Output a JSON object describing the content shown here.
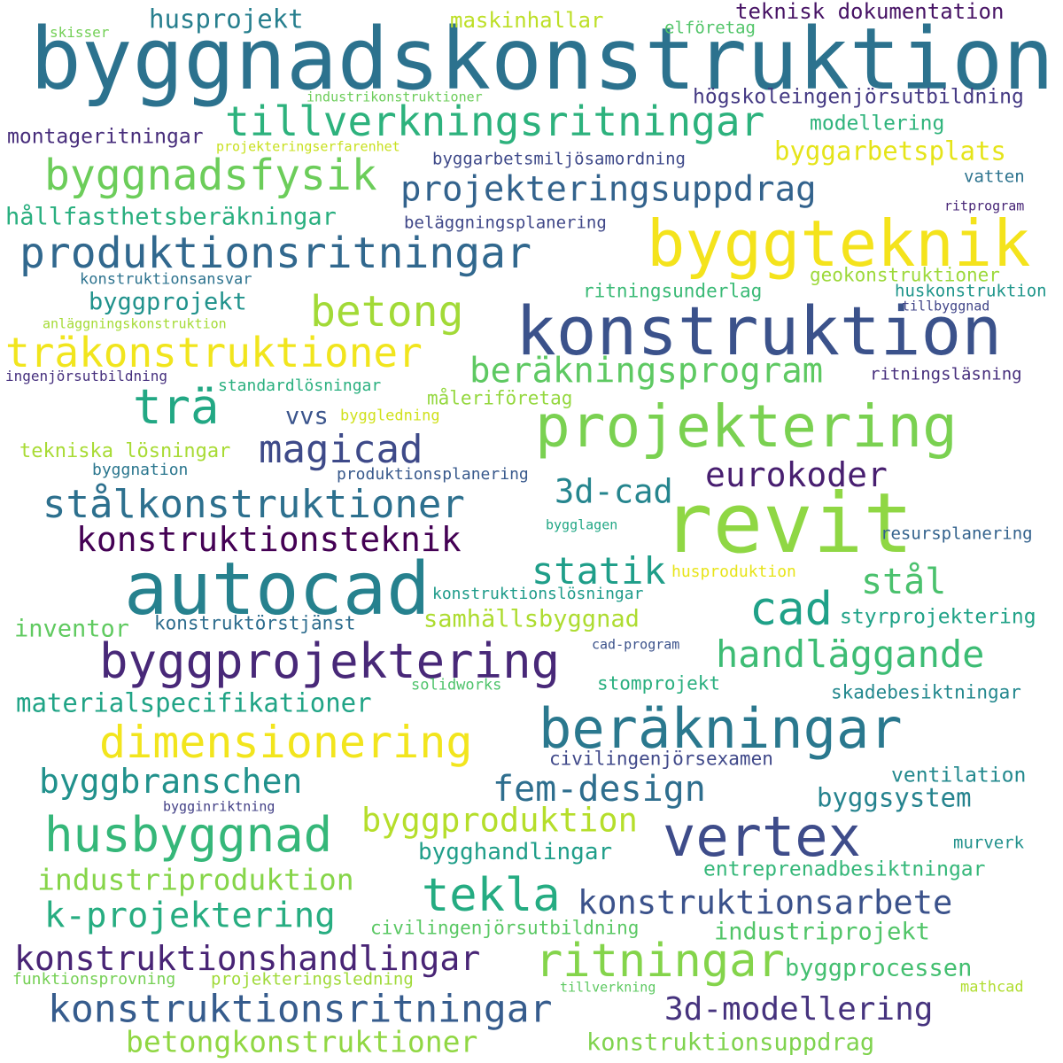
{
  "words": [
    {
      "text": "byggnadskonstruktion",
      "color": "#2c728e"
    },
    {
      "text": "byggteknik",
      "color": "#f4e31c"
    },
    {
      "text": "konstruktion",
      "color": "#3b528b"
    },
    {
      "text": "projektering",
      "color": "#7ad151"
    },
    {
      "text": "revit",
      "color": "#8fd744"
    },
    {
      "text": "autocad",
      "color": "#26818e"
    },
    {
      "text": "byggprojektering",
      "color": "#482878"
    },
    {
      "text": "beräkningar",
      "color": "#2a788e"
    },
    {
      "text": "tillverkningsritningar",
      "color": "#2db27d"
    },
    {
      "text": "byggnadsfysik",
      "color": "#6ccd5a"
    },
    {
      "text": "projekteringsuppdrag",
      "color": "#33638d"
    },
    {
      "text": "produktionsritningar",
      "color": "#31688e"
    },
    {
      "text": "betong",
      "color": "#a2da37"
    },
    {
      "text": "träkonstruktioner",
      "color": "#f1e51d"
    },
    {
      "text": "beräkningsprogram",
      "color": "#5ec962"
    },
    {
      "text": "trä",
      "color": "#22a884"
    },
    {
      "text": "magicad",
      "color": "#3e4a89"
    },
    {
      "text": "stålkonstruktioner",
      "color": "#2d708e"
    },
    {
      "text": "konstruktionsteknik",
      "color": "#440154"
    },
    {
      "text": "3d-cad",
      "color": "#25858e"
    },
    {
      "text": "eurokoder",
      "color": "#481f70"
    },
    {
      "text": "statik",
      "color": "#1f9e89"
    },
    {
      "text": "stål",
      "color": "#4ac16d"
    },
    {
      "text": "cad",
      "color": "#1fa188"
    },
    {
      "text": "handläggande",
      "color": "#3dbc74"
    },
    {
      "text": "dimensionering",
      "color": "#f2e51d"
    },
    {
      "text": "vertex",
      "color": "#3e4c8a"
    },
    {
      "text": "husbyggnad",
      "color": "#35b779"
    },
    {
      "text": "tekla",
      "color": "#25ac82"
    },
    {
      "text": "konstruktionsarbete",
      "color": "#3b528b"
    },
    {
      "text": "ritningar",
      "color": "#84d44b"
    },
    {
      "text": "konstruktionsritningar",
      "color": "#365c8d"
    },
    {
      "text": "konstruktionshandlingar",
      "color": "#482475"
    },
    {
      "text": "3d-modellering",
      "color": "#46337e"
    },
    {
      "text": "k-projektering",
      "color": "#27ad81"
    },
    {
      "text": "fem-design",
      "color": "#2e6e8e"
    },
    {
      "text": "byggbranschen",
      "color": "#21918c"
    },
    {
      "text": "byggproduktion",
      "color": "#b5de2b"
    },
    {
      "text": "materialspecifikationer",
      "color": "#20a486"
    },
    {
      "text": "industriproduktion",
      "color": "#86d549"
    },
    {
      "text": "husprojekt",
      "color": "#277f8e"
    },
    {
      "text": "maskinhallar",
      "color": "#bddf26"
    },
    {
      "text": "teknisk dokumentation",
      "color": "#471365"
    },
    {
      "text": "skisser",
      "color": "#73d056"
    },
    {
      "text": "elföretag",
      "color": "#52c569"
    },
    {
      "text": "industrikonstruktioner",
      "color": "#6ccd5a"
    },
    {
      "text": "högskoleingenjörsutbildning",
      "color": "#443983"
    },
    {
      "text": "modellering",
      "color": "#2fb47c"
    },
    {
      "text": "montageritningar",
      "color": "#472d7b"
    },
    {
      "text": "projekteringserfarenhet",
      "color": "#c8e020"
    },
    {
      "text": "byggarbetsmiljösamordning",
      "color": "#3e4989"
    },
    {
      "text": "byggarbetsplats",
      "color": "#e5e419"
    },
    {
      "text": "vatten",
      "color": "#2c738e"
    },
    {
      "text": "hållfasthetsberäkningar",
      "color": "#29af7f"
    },
    {
      "text": "beläggningsplanering",
      "color": "#3f4788"
    },
    {
      "text": "ritprogram",
      "color": "#482677"
    },
    {
      "text": "konstruktionsansvar",
      "color": "#2c728e"
    },
    {
      "text": "geokonstruktioner",
      "color": "#9dd93b"
    },
    {
      "text": "ritningsunderlag",
      "color": "#3aba76"
    },
    {
      "text": "huskonstruktion",
      "color": "#1f968b"
    },
    {
      "text": "byggprojekt",
      "color": "#20928c"
    },
    {
      "text": "tillbyggnad",
      "color": "#404588"
    },
    {
      "text": "anläggningskonstruktion",
      "color": "#a5db36"
    },
    {
      "text": "ingenjörsutbildning",
      "color": "#46307e"
    },
    {
      "text": "ritningsläsning",
      "color": "#472f7d"
    },
    {
      "text": "standardlösningar",
      "color": "#2ab07f"
    },
    {
      "text": "måleriföretag",
      "color": "#95d840"
    },
    {
      "text": "vvs",
      "color": "#3a548c"
    },
    {
      "text": "byggledning",
      "color": "#d0e11c"
    },
    {
      "text": "tekniska lösningar",
      "color": "#a8db34"
    },
    {
      "text": "byggnation",
      "color": "#2a768e"
    },
    {
      "text": "produktionsplanering",
      "color": "#38598c"
    },
    {
      "text": "bygglagen",
      "color": "#22a785"
    },
    {
      "text": "resursplanering",
      "color": "#33628d"
    },
    {
      "text": "husproduktion",
      "color": "#e7e419"
    },
    {
      "text": "konstruktionslösningar",
      "color": "#1e9b8a"
    },
    {
      "text": "inventor",
      "color": "#60ca60"
    },
    {
      "text": "konstruktörstjänst",
      "color": "#2e6d8e"
    },
    {
      "text": "samhällsbyggnad",
      "color": "#addc30"
    },
    {
      "text": "styrprojektering",
      "color": "#1fa287"
    },
    {
      "text": "cad-program",
      "color": "#3b528b"
    },
    {
      "text": "solidworks",
      "color": "#4ec36b"
    },
    {
      "text": "stomprojekt",
      "color": "#29af7f"
    },
    {
      "text": "skadebesiktningar",
      "color": "#23888e"
    },
    {
      "text": "civilingenjörsexamen",
      "color": "#3f4889"
    },
    {
      "text": "ventilation",
      "color": "#23898e"
    },
    {
      "text": "bygginriktning",
      "color": "#424086"
    },
    {
      "text": "byggsystem",
      "color": "#25838e"
    },
    {
      "text": "bygghandlingar",
      "color": "#1f9e89"
    },
    {
      "text": "murverk",
      "color": "#21918c"
    },
    {
      "text": "entreprenadbesiktningar",
      "color": "#35b779"
    },
    {
      "text": "civilingenjörsutbildning",
      "color": "#5ac864"
    },
    {
      "text": "industriprojekt",
      "color": "#52c569"
    },
    {
      "text": "funktionsprovning",
      "color": "#75d054"
    },
    {
      "text": "projekteringsledning",
      "color": "#a0da39"
    },
    {
      "text": "tillverkning",
      "color": "#5ec962"
    },
    {
      "text": "byggprocessen",
      "color": "#44bf70"
    },
    {
      "text": "mathcad",
      "color": "#b0dd2f"
    },
    {
      "text": "betongkonstruktioner",
      "color": "#90d743"
    },
    {
      "text": "konstruktionsuppdrag",
      "color": "#7fd34e"
    }
  ]
}
